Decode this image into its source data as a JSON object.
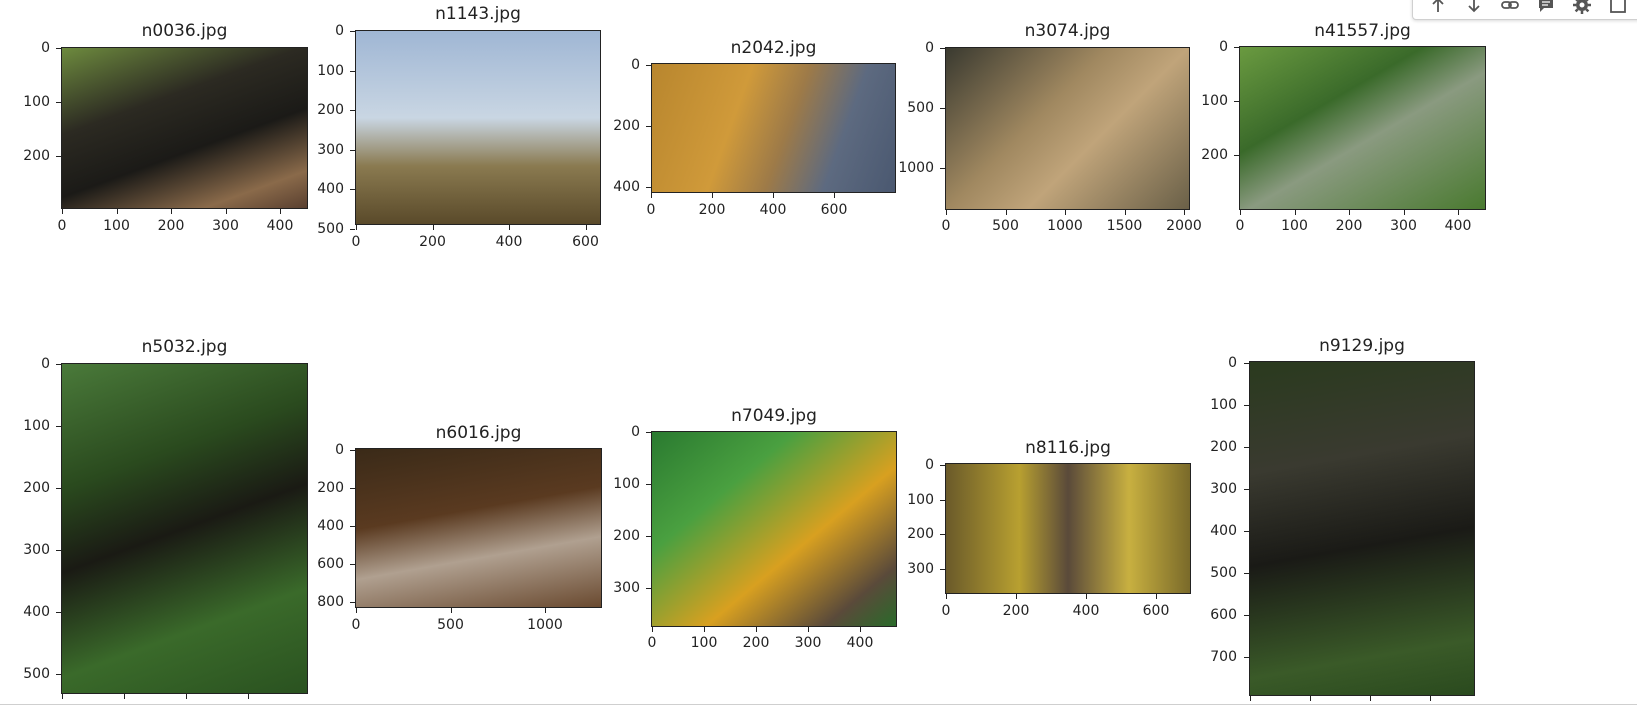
{
  "toolbar": {
    "icons": [
      "move-up-icon",
      "move-down-icon",
      "link-icon",
      "comment-icon",
      "settings-icon",
      "expand-icon"
    ]
  },
  "figure": {
    "panels": [
      {
        "title": "n0036.jpg",
        "yticks": [
          "0",
          "100",
          "200"
        ],
        "xticks": [
          "0",
          "100",
          "200",
          "300",
          "400"
        ]
      },
      {
        "title": "n1143.jpg",
        "yticks": [
          "0",
          "100",
          "200",
          "300",
          "400",
          "500"
        ],
        "xticks": [
          "0",
          "200",
          "400",
          "600"
        ]
      },
      {
        "title": "n2042.jpg",
        "yticks": [
          "0",
          "200",
          "400"
        ],
        "xticks": [
          "0",
          "200",
          "400",
          "600"
        ]
      },
      {
        "title": "n3074.jpg",
        "yticks": [
          "0",
          "500",
          "1000"
        ],
        "xticks": [
          "0",
          "500",
          "1000",
          "1500",
          "2000"
        ]
      },
      {
        "title": "n41557.jpg",
        "yticks": [
          "0",
          "100",
          "200"
        ],
        "xticks": [
          "0",
          "100",
          "200",
          "300",
          "400"
        ]
      },
      {
        "title": "n5032.jpg",
        "yticks": [
          "0",
          "100",
          "200",
          "300",
          "400",
          "500"
        ],
        "xticks": []
      },
      {
        "title": "n6016.jpg",
        "yticks": [
          "0",
          "200",
          "400",
          "600",
          "800"
        ],
        "xticks": [
          "0",
          "500",
          "1000"
        ]
      },
      {
        "title": "n7049.jpg",
        "yticks": [
          "0",
          "100",
          "200",
          "300"
        ],
        "xticks": [
          "0",
          "100",
          "200",
          "300",
          "400"
        ]
      },
      {
        "title": "n8116.jpg",
        "yticks": [
          "0",
          "100",
          "200",
          "300"
        ],
        "xticks": [
          "0",
          "200",
          "400",
          "600"
        ]
      },
      {
        "title": "n9129.jpg",
        "yticks": [
          "0",
          "100",
          "200",
          "300",
          "400",
          "500",
          "600",
          "700"
        ],
        "xticks": []
      }
    ]
  }
}
